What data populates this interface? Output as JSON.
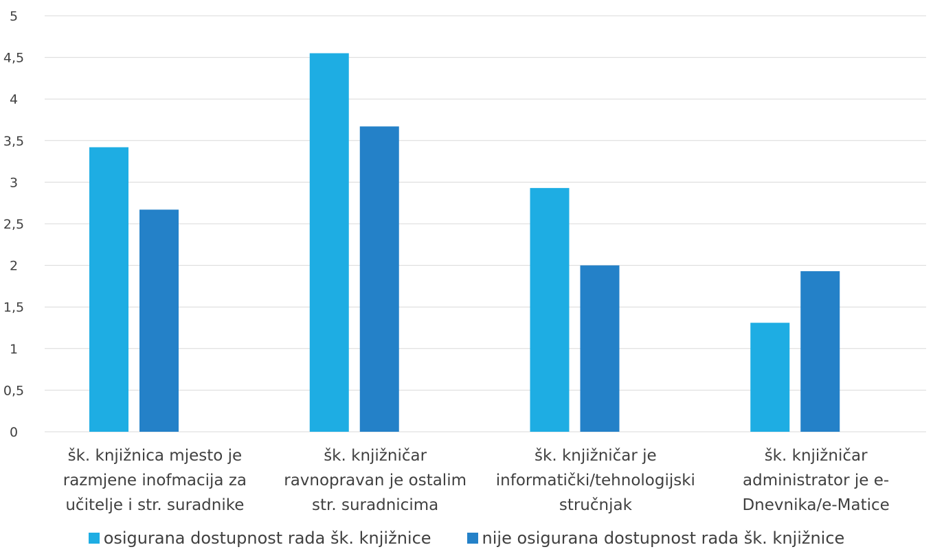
{
  "chart_data": {
    "type": "bar",
    "categories": [
      [
        "šk. knjižnica mjesto je",
        "razmjene inofmacija za",
        "učitelje i str. suradnike"
      ],
      [
        "šk. knjižničar",
        "ravnopravan je ostalim",
        "str. suradnicima"
      ],
      [
        "šk. knjižničar je",
        "informatički/tehnologijski",
        "stručnjak"
      ],
      [
        "šk. knjižničar",
        "administrator je e-",
        "Dnevnika/e-Matice"
      ]
    ],
    "series": [
      {
        "name": "osigurana dostupnost rada šk. knjižnice",
        "color": "#1EADE3",
        "values": [
          3.42,
          4.55,
          2.93,
          1.31
        ]
      },
      {
        "name": "nije osigurana dostupnost rada šk. knjižnice",
        "color": "#2481C8",
        "values": [
          2.67,
          3.67,
          2.0,
          1.93
        ]
      }
    ],
    "yticks": [
      "0",
      "0,5",
      "1",
      "1,5",
      "2",
      "2,5",
      "3",
      "3,5",
      "4",
      "4,5",
      "5"
    ],
    "ylim": [
      0,
      5
    ],
    "grid": true,
    "legend_position": "bottom"
  }
}
